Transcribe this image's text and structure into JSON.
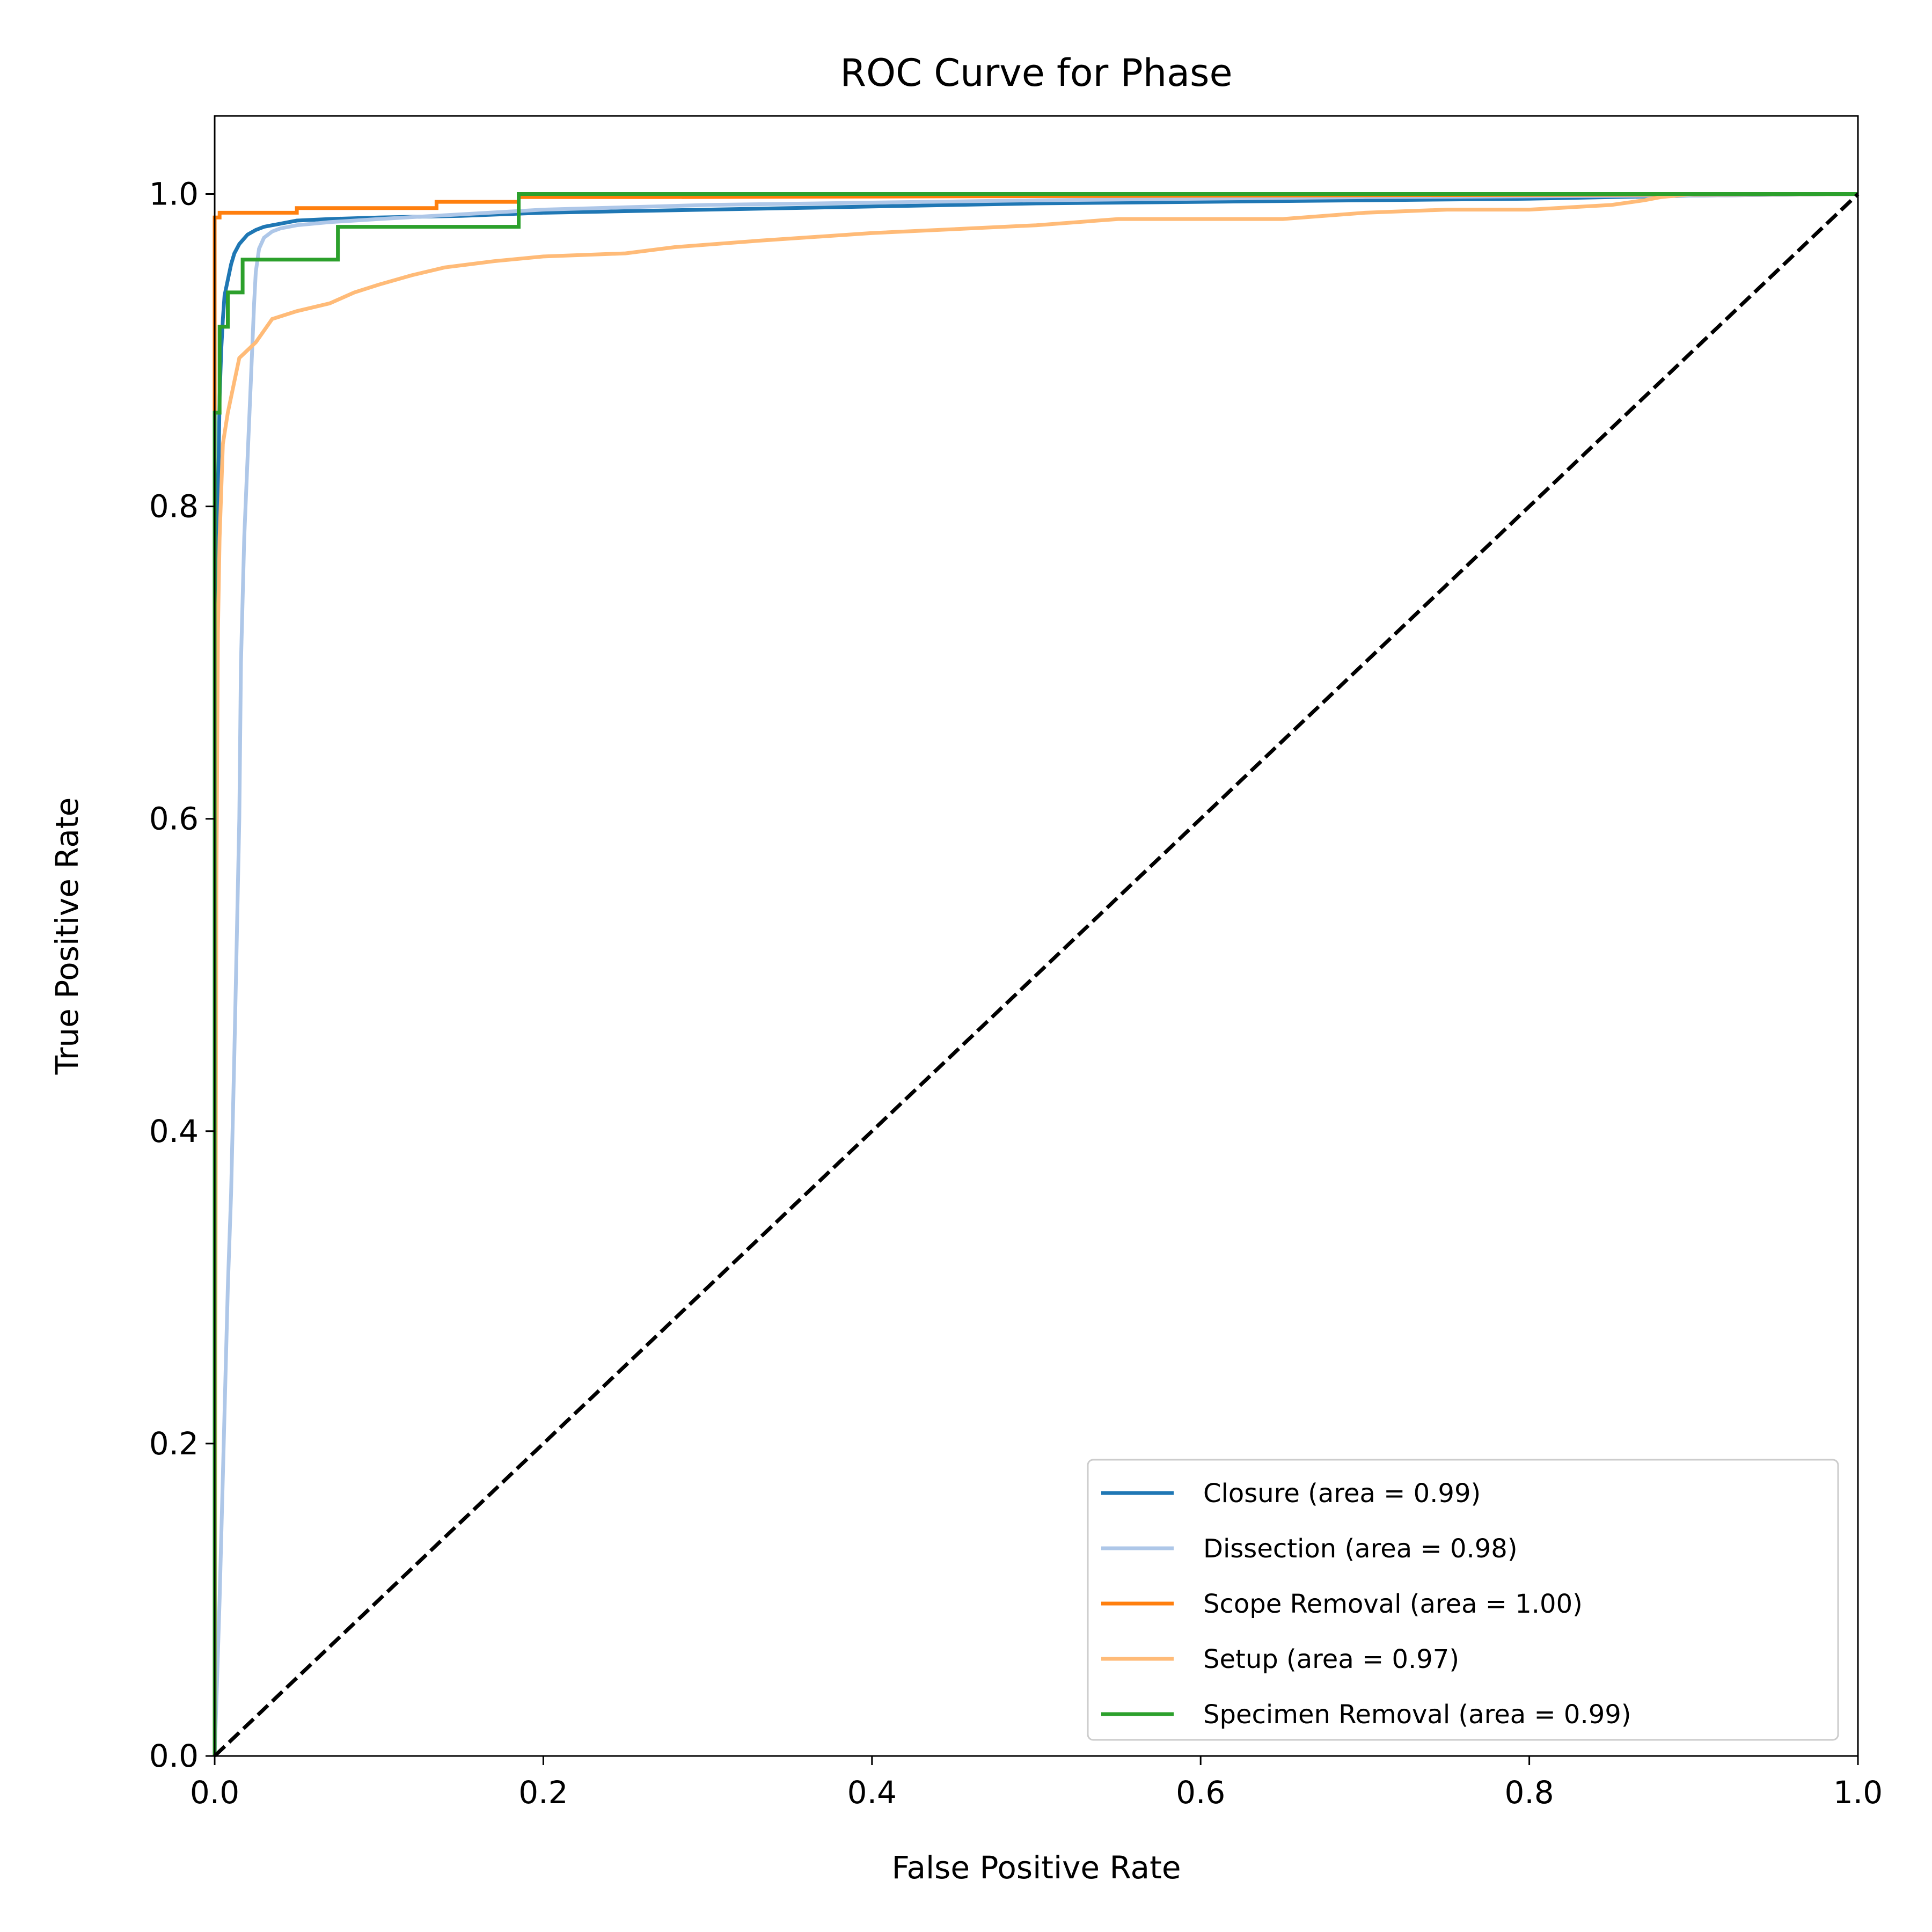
{
  "chart_data": {
    "type": "line",
    "title": "ROC Curve for Phase",
    "xlabel": "False Positive Rate",
    "ylabel": "True Positive Rate",
    "xlim": [
      0.0,
      1.0
    ],
    "ylim": [
      0.0,
      1.05
    ],
    "grid": false,
    "legend_position": "lower-right",
    "x_ticks": [
      "0.0",
      "0.2",
      "0.4",
      "0.6",
      "0.8",
      "1.0"
    ],
    "y_ticks": [
      "0.0",
      "0.2",
      "0.4",
      "0.6",
      "0.8",
      "1.0"
    ],
    "series": [
      {
        "name": "Closure (area = 0.99)",
        "color": "#1f77b4",
        "x": [
          0.0,
          0.0,
          0.002,
          0.003,
          0.004,
          0.005,
          0.006,
          0.008,
          0.01,
          0.012,
          0.015,
          0.02,
          0.025,
          0.03,
          0.04,
          0.05,
          0.07,
          0.1,
          0.15,
          0.2,
          0.3,
          0.4,
          0.5,
          0.6,
          0.7,
          0.8,
          0.85,
          0.9,
          1.0
        ],
        "y": [
          0.0,
          0.55,
          0.8,
          0.87,
          0.9,
          0.92,
          0.935,
          0.945,
          0.955,
          0.962,
          0.968,
          0.974,
          0.977,
          0.979,
          0.981,
          0.983,
          0.984,
          0.985,
          0.986,
          0.988,
          0.99,
          0.992,
          0.994,
          0.995,
          0.996,
          0.997,
          0.998,
          0.999,
          1.0
        ]
      },
      {
        "name": "Dissection (area = 0.98)",
        "color": "#aec7e8",
        "x": [
          0.0,
          0.003,
          0.006,
          0.008,
          0.01,
          0.012,
          0.013,
          0.015,
          0.016,
          0.018,
          0.02,
          0.022,
          0.024,
          0.025,
          0.027,
          0.03,
          0.035,
          0.04,
          0.05,
          0.07,
          0.1,
          0.15,
          0.2,
          0.3,
          0.5,
          0.7,
          0.9,
          1.0
        ],
        "y": [
          0.0,
          0.1,
          0.22,
          0.3,
          0.36,
          0.45,
          0.5,
          0.6,
          0.7,
          0.78,
          0.83,
          0.88,
          0.93,
          0.95,
          0.965,
          0.972,
          0.976,
          0.978,
          0.98,
          0.982,
          0.984,
          0.987,
          0.99,
          0.993,
          0.996,
          0.998,
          0.999,
          1.0
        ]
      },
      {
        "name": "Scope Removal (area = 1.00)",
        "color": "#ff7f0e",
        "x": [
          0.0,
          0.0,
          0.003,
          0.003,
          0.05,
          0.05,
          0.135,
          0.135,
          0.185,
          0.185,
          0.27,
          1.0
        ],
        "y": [
          0.0,
          0.985,
          0.985,
          0.988,
          0.988,
          0.991,
          0.991,
          0.995,
          0.995,
          0.998,
          0.998,
          1.0
        ]
      },
      {
        "name": "Setup (area = 0.97)",
        "color": "#ffbb78",
        "x": [
          0.0,
          0.001,
          0.002,
          0.003,
          0.005,
          0.008,
          0.012,
          0.015,
          0.02,
          0.025,
          0.035,
          0.05,
          0.07,
          0.085,
          0.1,
          0.12,
          0.14,
          0.17,
          0.2,
          0.25,
          0.28,
          0.33,
          0.4,
          0.5,
          0.55,
          0.65,
          0.7,
          0.75,
          0.8,
          0.85,
          0.87,
          0.88,
          0.9,
          1.0
        ],
        "y": [
          0.0,
          0.55,
          0.72,
          0.78,
          0.84,
          0.86,
          0.88,
          0.895,
          0.9,
          0.905,
          0.92,
          0.925,
          0.93,
          0.937,
          0.942,
          0.948,
          0.953,
          0.957,
          0.96,
          0.962,
          0.966,
          0.97,
          0.975,
          0.98,
          0.984,
          0.984,
          0.988,
          0.99,
          0.99,
          0.993,
          0.996,
          0.998,
          1.0,
          1.0
        ]
      },
      {
        "name": "Specimen Removal (area = 0.99)",
        "color": "#2ca02c",
        "x": [
          0.0,
          0.0,
          0.003,
          0.003,
          0.008,
          0.008,
          0.017,
          0.017,
          0.075,
          0.075,
          0.185,
          0.185,
          1.0
        ],
        "y": [
          0.0,
          0.86,
          0.86,
          0.915,
          0.915,
          0.937,
          0.937,
          0.958,
          0.958,
          0.979,
          0.979,
          1.0,
          1.0
        ]
      }
    ],
    "reference_line": {
      "x": [
        0.0,
        1.0
      ],
      "y": [
        0.0,
        1.0
      ],
      "color": "#000000",
      "style": "dashed"
    }
  }
}
